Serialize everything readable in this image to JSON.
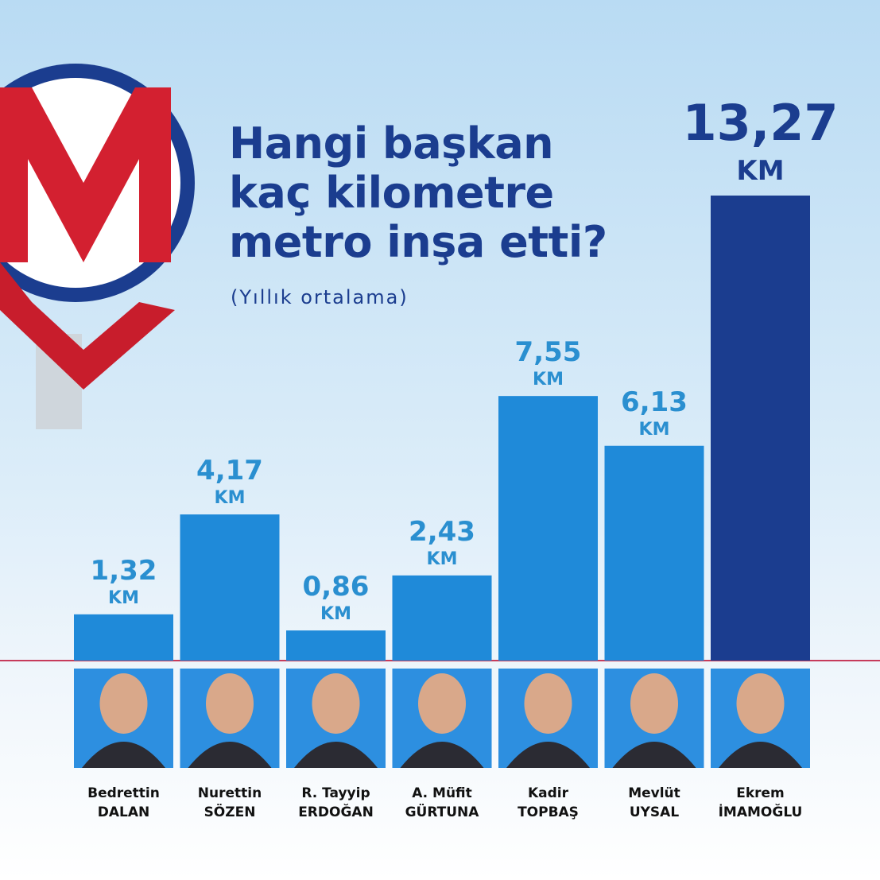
{
  "chart_data": {
    "type": "bar",
    "title": "Hangi başkan\nkaç kilometre\nmetro inşa etti?",
    "subtitle": "(Yıllık ortalama)",
    "categories": [
      "Bedrettin\nDALAN",
      "Nurettin\nSÖZEN",
      "R. Tayyip\nERDOĞAN",
      "A. Müfit\nGÜRTUNA",
      "Kadir\nTOPBAŞ",
      "Mevlüt\nUYSAL",
      "Ekrem\nİMAMOĞLU"
    ],
    "values": [
      1.32,
      4.17,
      0.86,
      2.43,
      7.55,
      6.13,
      13.27
    ],
    "value_labels": [
      "1,32",
      "4,17",
      "0,86",
      "2,43",
      "7,55",
      "6,13",
      "13,27"
    ],
    "unit": "KM",
    "colors": [
      "#1f8ad9",
      "#1f8ad9",
      "#1f8ad9",
      "#1f8ad9",
      "#1f8ad9",
      "#1f8ad9",
      "#1b3d8f"
    ]
  }
}
